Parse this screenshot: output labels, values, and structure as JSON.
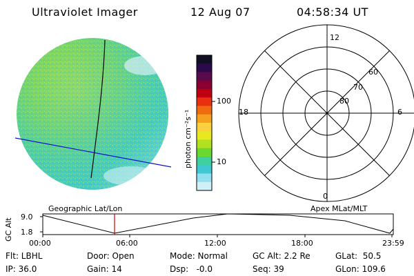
{
  "header": {
    "instrument": "Ultraviolet Imager",
    "date": "12 Aug 07",
    "time": "04:58:34 UT"
  },
  "colorbar": {
    "unit_label": "photon cm⁻²s⁻¹",
    "ticks": [
      "100",
      "10"
    ],
    "colors": [
      "#101020",
      "#2a0a4a",
      "#5a0a4a",
      "#8a0030",
      "#c00010",
      "#e83010",
      "#f06a10",
      "#f6a020",
      "#fad040",
      "#e8e820",
      "#b0e020",
      "#6ad830",
      "#40d0a0",
      "#40c8d0",
      "#90e0f0",
      "#d0f0f8"
    ]
  },
  "polar": {
    "mlt_labels": [
      "12",
      "18",
      "6",
      "0"
    ],
    "lat_labels": [
      "60",
      "70",
      "80"
    ]
  },
  "timeline": {
    "left_title": "Geographic Lat/Lon",
    "right_title": "Apex MLat/MLT",
    "axis_label": "GC Alt",
    "y_ticks": [
      "9.0",
      "1.8"
    ],
    "x_ticks": [
      "00:00",
      "06:00",
      "12:00",
      "18:00",
      "23:59"
    ],
    "marker_color": "#cc0000"
  },
  "footer": {
    "flt": "Flt: LBHL",
    "ip": "IP: 36.0",
    "door": "Door: Open",
    "gain": "Gain: 14",
    "mode": "Mode: Normal",
    "dsp": "Dsp:   -0.0",
    "gcalt": "GC Alt: 2.2 Re",
    "seq": "Seq: 39",
    "glat": "GLat:  50.5",
    "glon": "GLon: 109.6"
  }
}
